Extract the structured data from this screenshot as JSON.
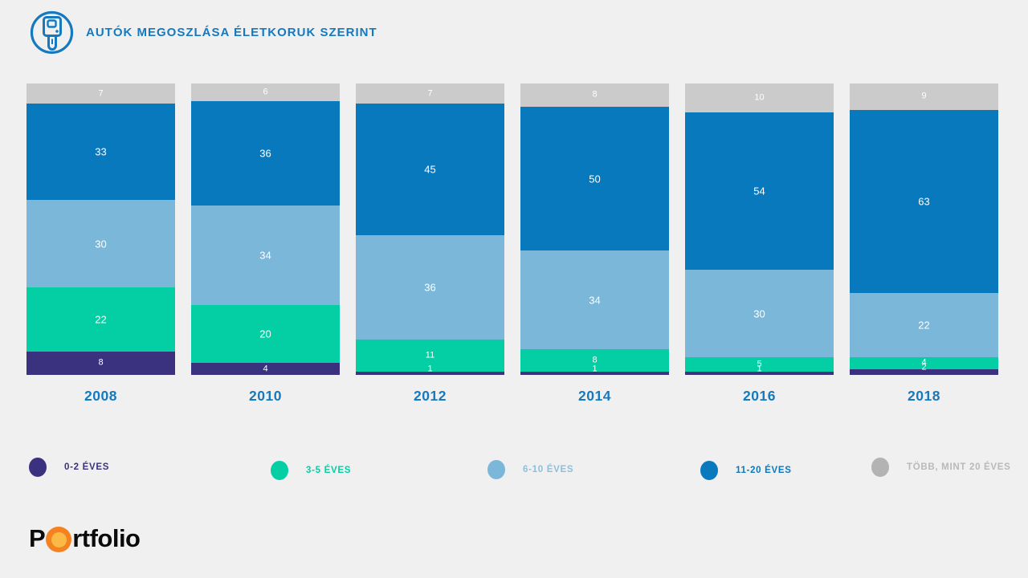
{
  "header": {
    "title": "AUTÓK MEGOSZLÁSA ÉLETKORUK SZERINT"
  },
  "chart_data": {
    "type": "bar",
    "variant": "stacked-100-percent-columns",
    "title": "AUTÓK MEGOSZLÁSA ÉLETKORUK SZERINT",
    "categories": [
      "2008",
      "2010",
      "2012",
      "2014",
      "2016",
      "2018"
    ],
    "series": [
      {
        "name": "0-2 ÉVES",
        "color": "#3A317F",
        "values": [
          8,
          4,
          1,
          1,
          1,
          2
        ]
      },
      {
        "name": "3-5 ÉVES",
        "color": "#04CFA4",
        "values": [
          22,
          20,
          11,
          8,
          5,
          4
        ]
      },
      {
        "name": "6-10 ÉVES",
        "color": "#7BB7D9",
        "values": [
          30,
          34,
          36,
          34,
          30,
          22
        ]
      },
      {
        "name": "11-20 ÉVES",
        "color": "#0979BE",
        "values": [
          33,
          36,
          45,
          50,
          54,
          63
        ]
      },
      {
        "name": "TÖBB, MINT 20 ÉVES",
        "color": "#CBCBCB",
        "values": [
          7,
          6,
          7,
          8,
          10,
          9
        ]
      }
    ],
    "ylim": [
      0,
      100
    ],
    "grid": false,
    "value_labels": "inside-white",
    "legend_position": "bottom",
    "stack_order_bottom_to_top": [
      "0-2 ÉVES",
      "3-5 ÉVES",
      "6-10 ÉVES",
      "11-20 ÉVES",
      "TÖBB, MINT 20 ÉVES"
    ]
  },
  "legend": {
    "items": [
      {
        "label": "0-2 ÉVES",
        "color": "#3A317F",
        "text_color": "#3A317F"
      },
      {
        "label": "3-5 ÉVES",
        "color": "#04CFA4",
        "text_color": "#04CFA4"
      },
      {
        "label": "6-10 ÉVES",
        "color": "#7BB7D9",
        "text_color": "#8FBEDA"
      },
      {
        "label": "11-20 ÉVES",
        "color": "#0979BE",
        "text_color": "#0979BE"
      },
      {
        "label": "TÖBB, MINT 20 ÉVES",
        "color": "#B3B3B3",
        "text_color": "#B9B9B9"
      }
    ]
  },
  "footer": {
    "logo_prefix": "P",
    "logo_suffix": "rtfolio"
  },
  "colors": {
    "background": "#F0F0F1",
    "title_blue": "#1479BF",
    "year_label_blue": "#1579BF",
    "bar_label_white": "#FFFFFF",
    "logo_orange_outer": "#F58220",
    "logo_orange_inner": "#FBBA45",
    "logo_text_black": "#0B0B0B"
  }
}
